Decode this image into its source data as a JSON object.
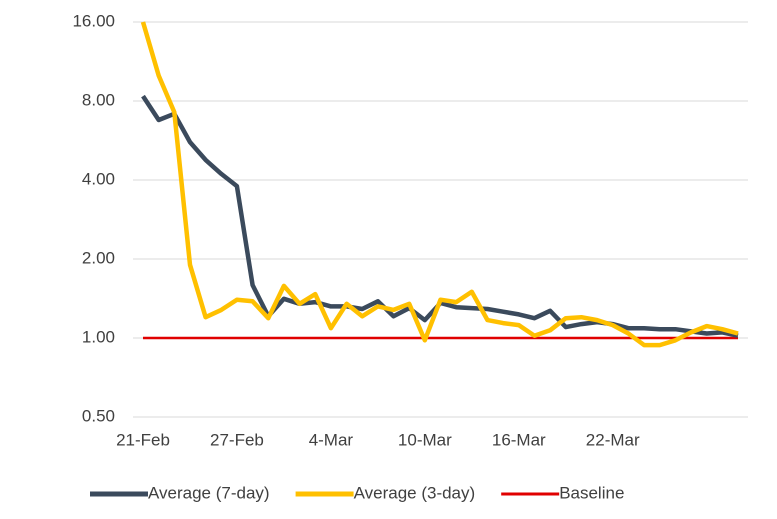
{
  "chart_data": {
    "type": "line",
    "categories": [
      "21-Feb",
      null,
      null,
      null,
      null,
      null,
      "27-Feb",
      null,
      null,
      null,
      null,
      null,
      "4-Mar",
      null,
      null,
      null,
      null,
      null,
      "10-Mar",
      null,
      null,
      null,
      null,
      null,
      "16-Mar",
      null,
      null,
      null,
      null,
      null,
      "22-Mar",
      null,
      null,
      null,
      null,
      null,
      null,
      null,
      null
    ],
    "series": [
      {
        "name": "Average (7-day)",
        "color": "#3b4a5c",
        "values": [
          8.35,
          6.77,
          7.15,
          5.58,
          4.77,
          4.22,
          3.79,
          1.59,
          1.21,
          1.41,
          1.35,
          1.37,
          1.32,
          1.32,
          1.29,
          1.38,
          1.21,
          1.3,
          1.17,
          1.36,
          1.31,
          1.3,
          1.29,
          1.26,
          1.23,
          1.19,
          1.27,
          1.1,
          1.13,
          1.15,
          1.13,
          1.09,
          1.09,
          1.08,
          1.08,
          1.06,
          1.04,
          1.05,
          1.02
        ]
      },
      {
        "name": "Average (3-day)",
        "color": "#ffc000",
        "values": [
          16.0,
          10.0,
          7.26,
          1.9,
          1.2,
          1.28,
          1.4,
          1.38,
          1.19,
          1.58,
          1.35,
          1.47,
          1.09,
          1.35,
          1.21,
          1.32,
          1.28,
          1.35,
          0.98,
          1.4,
          1.37,
          1.5,
          1.17,
          1.14,
          1.12,
          1.02,
          1.07,
          1.19,
          1.2,
          1.17,
          1.12,
          1.04,
          0.94,
          0.94,
          0.98,
          1.05,
          1.11,
          1.08,
          1.04
        ]
      },
      {
        "name": "Baseline",
        "color": "#e00000",
        "values": [
          1,
          1,
          1,
          1,
          1,
          1,
          1,
          1,
          1,
          1,
          1,
          1,
          1,
          1,
          1,
          1,
          1,
          1,
          1,
          1,
          1,
          1,
          1,
          1,
          1,
          1,
          1,
          1,
          1,
          1,
          1,
          1,
          1,
          1,
          1,
          1,
          1,
          1,
          1
        ]
      }
    ],
    "log_y": true,
    "ylim": [
      0.5,
      16
    ],
    "yticks": [
      {
        "value": 0.5,
        "label": "0.50"
      },
      {
        "value": 1,
        "label": "1.00"
      },
      {
        "value": 2,
        "label": "2.00"
      },
      {
        "value": 4,
        "label": "4.00"
      },
      {
        "value": 8,
        "label": "8.00"
      },
      {
        "value": 16,
        "label": "16.00"
      }
    ],
    "grid": true,
    "legend": "bottom"
  }
}
